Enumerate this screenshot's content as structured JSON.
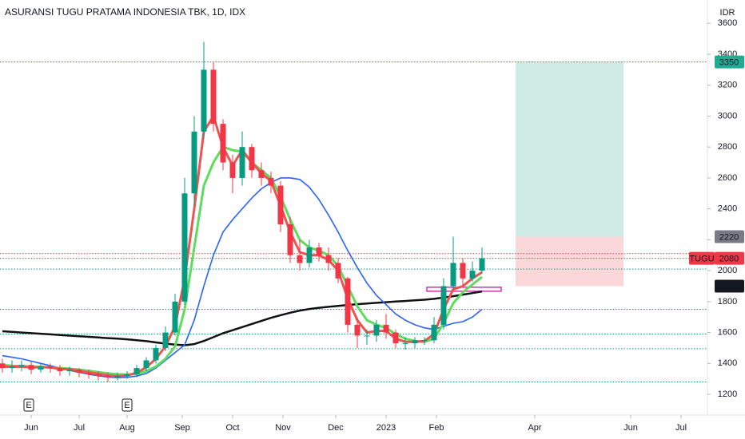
{
  "chart_data": {
    "type": "candlestick",
    "title": "ASURANSI TUGU PRATAMA INDONESIA TBK, 1D, IDX",
    "currency": "IDR",
    "symbol": "TUGU",
    "x": [
      0,
      4,
      8,
      12,
      16,
      20,
      24,
      28,
      32,
      36,
      40,
      44,
      48,
      52,
      56,
      60,
      64,
      68,
      72,
      76,
      80,
      84,
      88,
      92,
      96,
      100,
      104,
      108,
      112,
      116,
      120,
      124,
      128,
      132,
      136,
      140,
      144,
      148,
      152,
      156,
      160,
      164,
      168,
      172,
      176,
      180,
      184,
      188,
      192,
      196,
      200
    ],
    "open": [
      1400,
      1370,
      1380,
      1390,
      1360,
      1380,
      1370,
      1350,
      1360,
      1340,
      1330,
      1320,
      1310,
      1320,
      1330,
      1370,
      1420,
      1500,
      1600,
      1800,
      2500,
      2900,
      3300,
      2950,
      2700,
      2600,
      2800,
      2650,
      2600,
      2550,
      2300,
      2100,
      2050,
      2150,
      2100,
      2050,
      1950,
      1650,
      1580,
      1580,
      1650,
      1600,
      1530,
      1530,
      1550,
      1550,
      1650,
      1900,
      2050,
      1950,
      2000
    ],
    "high": [
      1430,
      1420,
      1420,
      1410,
      1400,
      1400,
      1390,
      1380,
      1370,
      1360,
      1350,
      1340,
      1340,
      1350,
      1390,
      1440,
      1520,
      1640,
      1850,
      2600,
      3000,
      3480,
      3350,
      2980,
      2750,
      2900,
      2820,
      2700,
      2640,
      2580,
      2350,
      2200,
      2200,
      2180,
      2150,
      2080,
      1960,
      1700,
      1620,
      1680,
      1720,
      1620,
      1570,
      1570,
      1570,
      1700,
      1950,
      2220,
      2080,
      2060,
      2150
    ],
    "low": [
      1340,
      1340,
      1350,
      1330,
      1340,
      1340,
      1320,
      1320,
      1310,
      1300,
      1290,
      1280,
      1290,
      1300,
      1310,
      1350,
      1400,
      1480,
      1580,
      1780,
      2420,
      2850,
      2900,
      2650,
      2500,
      2550,
      2600,
      2550,
      2500,
      2250,
      2050,
      2000,
      2020,
      2060,
      2000,
      1920,
      1600,
      1500,
      1520,
      1540,
      1560,
      1500,
      1490,
      1500,
      1520,
      1530,
      1620,
      1880,
      1900,
      1930,
      1980
    ],
    "close": [
      1370,
      1380,
      1390,
      1360,
      1380,
      1370,
      1350,
      1360,
      1340,
      1330,
      1320,
      1310,
      1320,
      1330,
      1370,
      1420,
      1500,
      1600,
      1800,
      2500,
      2900,
      3300,
      2950,
      2700,
      2600,
      2800,
      2650,
      2600,
      2550,
      2300,
      2100,
      2050,
      2150,
      2100,
      2050,
      1950,
      1650,
      1580,
      1580,
      1650,
      1600,
      1530,
      1530,
      1550,
      1550,
      1650,
      1900,
      2050,
      1950,
      2000,
      2080
    ],
    "up_color": "#089981",
    "down_color": "#f23645",
    "lines": [
      {
        "color": "#111111",
        "width": 2.5,
        "values": [
          1608,
          1604,
          1600,
          1596,
          1592,
          1588,
          1584,
          1580,
          1576,
          1572,
          1568,
          1564,
          1560,
          1556,
          1550,
          1544,
          1536,
          1528,
          1522,
          1518,
          1525,
          1545,
          1570,
          1595,
          1615,
          1635,
          1655,
          1675,
          1695,
          1712,
          1728,
          1742,
          1752,
          1760,
          1766,
          1772,
          1778,
          1783,
          1788,
          1792,
          1796,
          1800,
          1804,
          1808,
          1812,
          1818,
          1826,
          1835,
          1845,
          1855,
          1866
        ]
      },
      {
        "color": "#2962ff",
        "width": 1.6,
        "values": [
          1450,
          1440,
          1430,
          1415,
          1400,
          1385,
          1370,
          1355,
          1342,
          1330,
          1320,
          1312,
          1308,
          1310,
          1318,
          1335,
          1370,
          1420,
          1470,
          1520,
          1680,
          1900,
          2100,
          2250,
          2330,
          2400,
          2470,
          2530,
          2570,
          2600,
          2600,
          2590,
          2540,
          2460,
          2360,
          2250,
          2130,
          2020,
          1920,
          1840,
          1780,
          1720,
          1680,
          1650,
          1630,
          1620,
          1640,
          1660,
          1670,
          1700,
          1750
        ]
      },
      {
        "color": "#5ddc5d",
        "width": 3,
        "values": [
          1390,
          1385,
          1382,
          1380,
          1378,
          1375,
          1370,
          1366,
          1360,
          1352,
          1344,
          1336,
          1330,
          1328,
          1332,
          1350,
          1380,
          1430,
          1510,
          1750,
          2150,
          2550,
          2700,
          2800,
          2780,
          2770,
          2700,
          2650,
          2600,
          2480,
          2330,
          2200,
          2150,
          2130,
          2100,
          2030,
          1900,
          1770,
          1680,
          1650,
          1630,
          1590,
          1560,
          1545,
          1540,
          1560,
          1660,
          1790,
          1860,
          1910,
          1960
        ]
      },
      {
        "color": "#ef5350",
        "width": 3,
        "values": [
          1380,
          1378,
          1380,
          1375,
          1376,
          1374,
          1365,
          1362,
          1352,
          1342,
          1333,
          1322,
          1318,
          1322,
          1340,
          1375,
          1430,
          1510,
          1640,
          1950,
          2400,
          2900,
          3000,
          2800,
          2680,
          2780,
          2700,
          2630,
          2580,
          2420,
          2250,
          2120,
          2100,
          2100,
          2070,
          2000,
          1820,
          1680,
          1600,
          1610,
          1610,
          1560,
          1540,
          1540,
          1545,
          1590,
          1750,
          1880,
          1900,
          1950,
          1990
        ]
      }
    ],
    "levels": [
      {
        "value": 3350,
        "color": "#f23645"
      },
      {
        "value": 2110,
        "color": "#f23645"
      },
      {
        "value": 2080,
        "color": "#f23645"
      },
      {
        "value": 2010,
        "color": "#089981"
      },
      {
        "value": 1750,
        "color": "#089981"
      },
      {
        "value": 1590,
        "color": "#089981"
      },
      {
        "value": 1495,
        "color": "#089981"
      },
      {
        "value": 1280,
        "color": "#089981"
      }
    ],
    "position": {
      "x": [
        214,
        259
      ],
      "target": 3350,
      "entry": 2220,
      "stop": 1900
    },
    "marker": {
      "x": [
        177,
        208
      ],
      "value": 1880,
      "color": "#c837ab"
    },
    "events": [
      {
        "x": 11,
        "label": "E"
      },
      {
        "x": 52,
        "label": "E"
      }
    ],
    "xlim": [
      -1,
      294
    ],
    "ylim": [
      1066,
      3751
    ],
    "xticks": [
      {
        "value": 12,
        "label": "Jun"
      },
      {
        "value": 32,
        "label": "Jul"
      },
      {
        "value": 52,
        "label": "Aug"
      },
      {
        "value": 75,
        "label": "Sep"
      },
      {
        "value": 96,
        "label": "Oct"
      },
      {
        "value": 117,
        "label": "Nov"
      },
      {
        "value": 139,
        "label": "Dec"
      },
      {
        "value": 160,
        "label": "2023"
      },
      {
        "value": 181,
        "label": "Feb"
      },
      {
        "value": 222,
        "label": "Apr"
      },
      {
        "value": 262,
        "label": "Jun"
      },
      {
        "value": 283,
        "label": "Jul"
      }
    ],
    "yticks": [
      1200,
      1400,
      1600,
      1800,
      2000,
      2200,
      2400,
      2600,
      2800,
      3000,
      3200,
      3400,
      3600
    ]
  }
}
